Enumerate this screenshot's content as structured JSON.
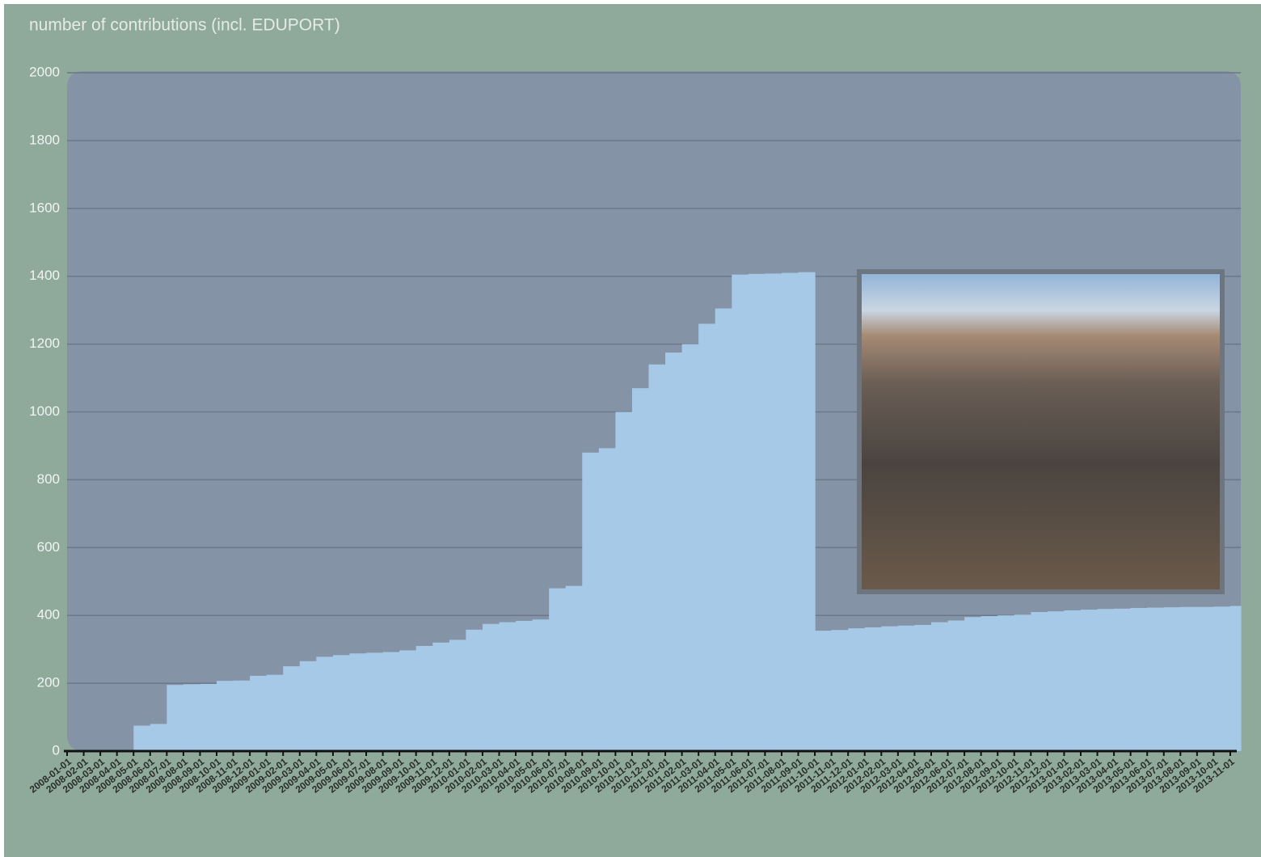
{
  "chart_data": {
    "type": "step-area",
    "title": "number of contributions (incl. EDUPORT)",
    "categories": [
      "2008-01-01",
      "2008-02-01",
      "2008-03-01",
      "2008-04-01",
      "2008-05-01",
      "2008-06-01",
      "2008-07-01",
      "2008-08-01",
      "2008-09-01",
      "2008-10-01",
      "2008-11-01",
      "2008-12-01",
      "2009-01-01",
      "2009-02-01",
      "2009-03-01",
      "2009-04-01",
      "2009-05-01",
      "2009-06-01",
      "2009-07-01",
      "2009-08-01",
      "2009-09-01",
      "2009-10-01",
      "2009-11-01",
      "2009-12-01",
      "2010-01-01",
      "2010-02-01",
      "2010-03-01",
      "2010-04-01",
      "2010-05-01",
      "2010-06-01",
      "2010-07-01",
      "2010-08-01",
      "2010-09-01",
      "2010-10-01",
      "2010-11-01",
      "2010-12-01",
      "2011-01-01",
      "2011-02-01",
      "2011-03-01",
      "2011-04-01",
      "2011-05-01",
      "2011-06-01",
      "2011-07-01",
      "2011-08-01",
      "2011-09-01",
      "2011-10-01",
      "2011-11-01",
      "2011-12-01",
      "2012-01-01",
      "2012-02-01",
      "2012-03-01",
      "2012-04-01",
      "2012-05-01",
      "2012-06-01",
      "2012-07-01",
      "2012-08-01",
      "2012-09-01",
      "2012-10-01",
      "2012-11-01",
      "2012-12-01",
      "2013-01-01",
      "2013-02-01",
      "2013-03-01",
      "2013-04-01",
      "2013-05-01",
      "2013-06-01",
      "2013-07-01",
      "2013-08-01",
      "2013-09-01",
      "2013-10-01",
      "2013-11-01"
    ],
    "values": [
      0,
      0,
      0,
      0,
      75,
      80,
      195,
      197,
      198,
      207,
      208,
      222,
      225,
      250,
      265,
      278,
      283,
      288,
      290,
      292,
      297,
      310,
      320,
      328,
      358,
      375,
      380,
      384,
      388,
      480,
      487,
      880,
      893,
      1000,
      1070,
      1140,
      1175,
      1200,
      1260,
      1305,
      1405,
      1407,
      1408,
      1410,
      1412,
      355,
      357,
      362,
      365,
      368,
      370,
      372,
      380,
      385,
      395,
      398,
      400,
      402,
      410,
      412,
      415,
      417,
      419,
      420,
      422,
      423,
      424,
      425,
      425,
      426,
      428
    ],
    "color": "#a6c9e8",
    "ylim": [
      0,
      2000
    ],
    "yticks": [
      0,
      200,
      400,
      600,
      800,
      1000,
      1200,
      1400,
      1600,
      1800,
      2000
    ],
    "grid": true
  }
}
